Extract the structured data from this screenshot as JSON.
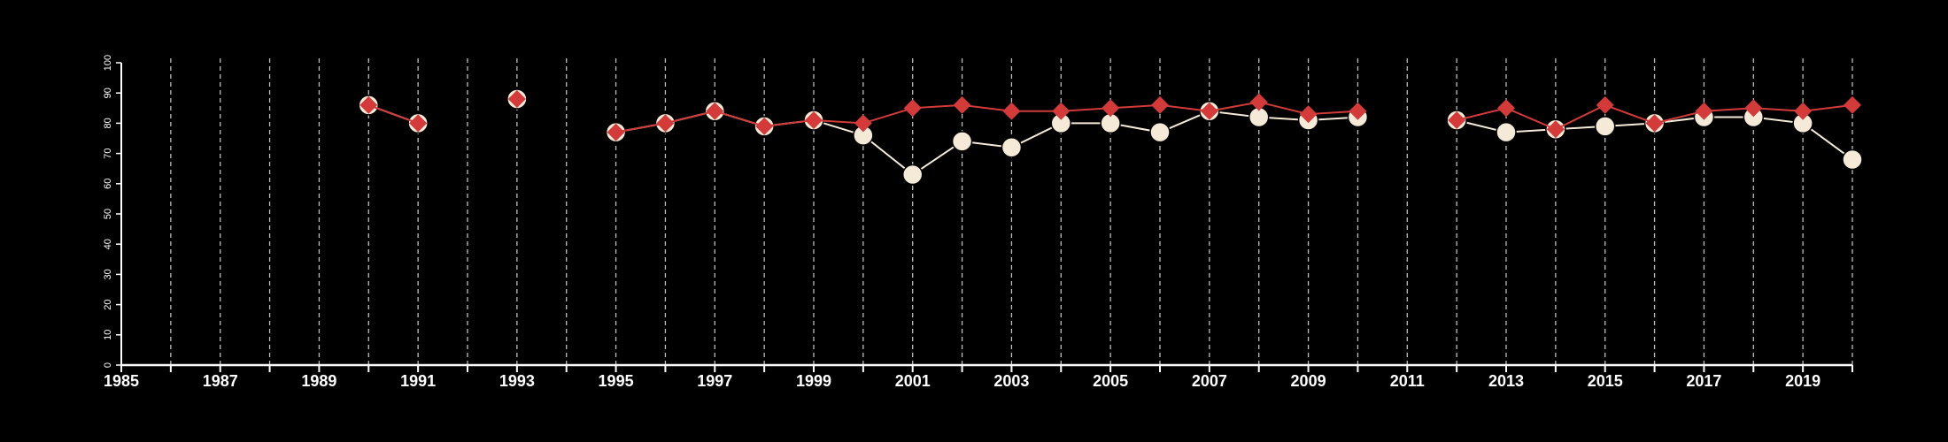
{
  "colors": {
    "background": "#000000",
    "axis": "#ffffff",
    "grid": "#bdbdbd",
    "series_a": "#f5ead8",
    "series_b": "#d33a3a"
  },
  "chart_data": {
    "type": "line",
    "title": "",
    "xlabel": "",
    "ylabel": "",
    "xlim": [
      1985,
      2020
    ],
    "ylim": [
      0,
      100
    ],
    "x_ticks": [
      1985,
      1986,
      1987,
      1988,
      1989,
      1990,
      1991,
      1992,
      1993,
      1994,
      1995,
      1996,
      1997,
      1998,
      1999,
      2000,
      2001,
      2002,
      2003,
      2004,
      2005,
      2006,
      2007,
      2008,
      2009,
      2010,
      2011,
      2012,
      2013,
      2014,
      2015,
      2016,
      2017,
      2018,
      2019,
      2020
    ],
    "x_tick_labels": [
      "1985",
      "1987",
      "1989",
      "1991",
      "1993",
      "1995",
      "1997",
      "1999",
      "2001",
      "2003",
      "2005",
      "2007",
      "2009",
      "2011",
      "2013",
      "2015",
      "2017",
      "2019"
    ],
    "y_ticks": [
      0,
      10,
      20,
      30,
      40,
      50,
      60,
      70,
      80,
      90,
      100
    ],
    "y_tick_labels": [
      "0",
      "10",
      "20",
      "30",
      "40",
      "50",
      "60",
      "70",
      "80",
      "90",
      "100"
    ],
    "grid": "vertical dashed lines at each year",
    "legend": "none",
    "series": [
      {
        "marker": "circle",
        "color": "#f5ead8",
        "x": [
          1990,
          1991,
          1993,
          1995,
          1996,
          1997,
          1998,
          1999,
          2000,
          2001,
          2002,
          2003,
          2004,
          2005,
          2006,
          2007,
          2008,
          2009,
          2010,
          2012,
          2013,
          2014,
          2015,
          2016,
          2017,
          2018,
          2019,
          2020
        ],
        "values": [
          86,
          80,
          88,
          77,
          80,
          84,
          79,
          81,
          76,
          63,
          74,
          72,
          80,
          80,
          77,
          84,
          82,
          81,
          82,
          81,
          77,
          78,
          79,
          80,
          82,
          82,
          80,
          68
        ]
      },
      {
        "marker": "diamond",
        "color": "#d33a3a",
        "x": [
          1990,
          1991,
          1993,
          1995,
          1996,
          1997,
          1998,
          1999,
          2000,
          2001,
          2002,
          2003,
          2004,
          2005,
          2006,
          2007,
          2008,
          2009,
          2010,
          2012,
          2013,
          2014,
          2015,
          2016,
          2017,
          2018,
          2019,
          2020
        ],
        "values": [
          86,
          80,
          88,
          77,
          80,
          84,
          79,
          81,
          80,
          85,
          86,
          84,
          84,
          85,
          86,
          84,
          87,
          83,
          84,
          81,
          85,
          78,
          86,
          80,
          84,
          85,
          84,
          86
        ]
      }
    ]
  }
}
